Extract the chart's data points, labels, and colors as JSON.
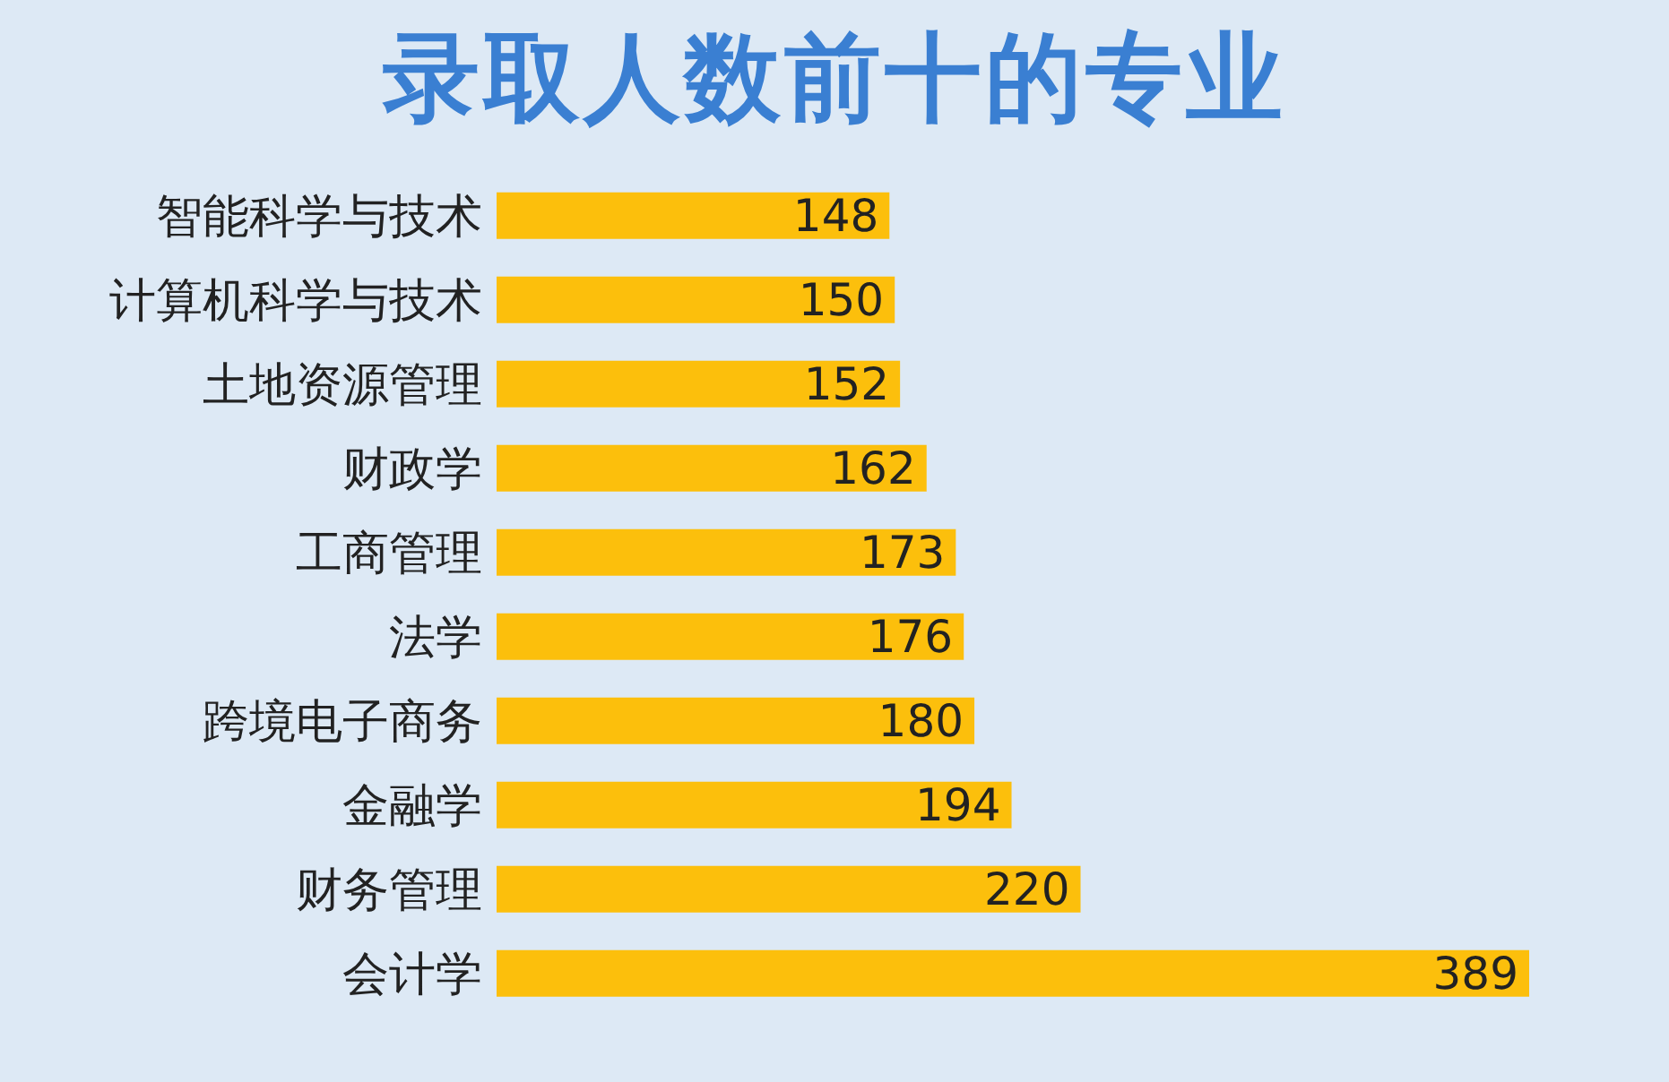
{
  "chart_data": {
    "type": "bar",
    "orientation": "horizontal",
    "title": "录取人数前十的专业",
    "categories": [
      "智能科学与技术",
      "计算机科学与技术",
      "土地资源管理",
      "财政学",
      "工商管理",
      "法学",
      "跨境电子商务",
      "金融学",
      "财务管理",
      "会计学"
    ],
    "values": [
      148,
      150,
      152,
      162,
      173,
      176,
      180,
      194,
      220,
      389
    ],
    "color": "#fcbf0c",
    "data_labels": true
  }
}
